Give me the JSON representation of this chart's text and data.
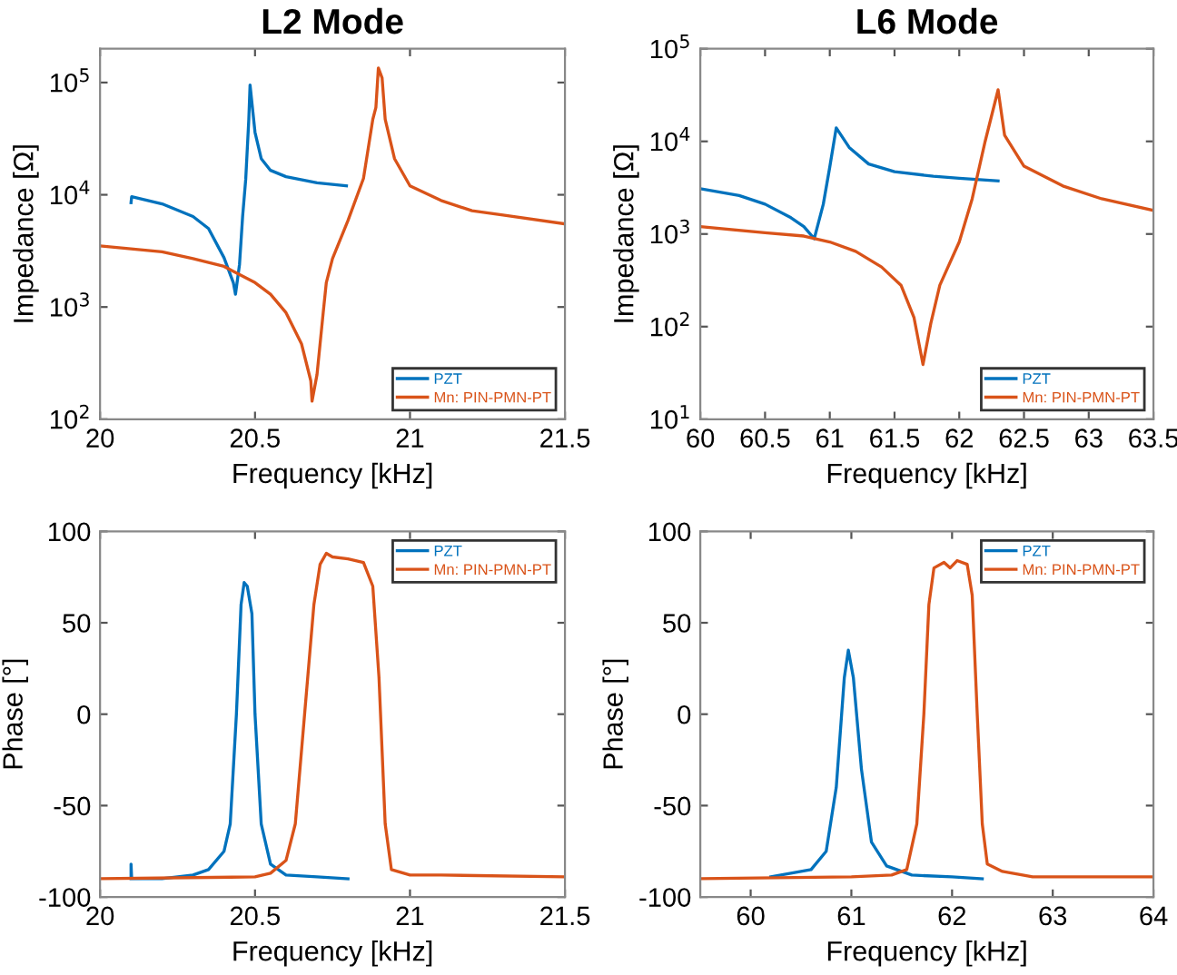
{
  "chart_data": [
    {
      "type": "line",
      "title": "L2 Mode",
      "xlabel": "Frequency [kHz]",
      "ylabel": "Impedance [Ω]",
      "log": "y",
      "xlim": [
        20,
        21.5
      ],
      "xticks": [
        20,
        20.5,
        21,
        21.5
      ],
      "ylim": [
        100,
        200000
      ],
      "yticks": [
        {
          "value": 100,
          "label": "10$^{2}$"
        },
        {
          "value": 1000,
          "label": "10$^{3}$"
        },
        {
          "value": 10000,
          "label": "10$^{4}$"
        },
        {
          "value": 100000,
          "label": "10$^{5}$"
        }
      ],
      "grid": false,
      "legend": "bottom right",
      "series": [
        {
          "name": "PZT",
          "color": "#0072bd",
          "x": [
            20.1,
            20.102,
            20.2,
            20.3,
            20.35,
            20.4,
            20.43,
            20.437,
            20.45,
            20.46,
            20.47,
            20.48,
            20.484,
            20.5,
            20.52,
            20.55,
            20.6,
            20.7,
            20.795
          ],
          "values": [
            8500,
            9600,
            8300,
            6400,
            5000,
            2750,
            1650,
            1300,
            2400,
            6400,
            13700,
            47000,
            95000,
            36000,
            21000,
            16500,
            14500,
            12800,
            12000
          ]
        },
        {
          "name": "Mn: PIN-PMN-PT",
          "color": "#d95319",
          "x": [
            20,
            20.2,
            20.3,
            20.4,
            20.5,
            20.55,
            20.6,
            20.65,
            20.68,
            20.684,
            20.7,
            20.72,
            20.73,
            20.75,
            20.8,
            20.85,
            20.88,
            20.89,
            20.898,
            20.91,
            20.92,
            20.95,
            21.0,
            21.1,
            21.2,
            21.3,
            21.5
          ],
          "values": [
            3500,
            3100,
            2700,
            2300,
            1650,
            1300,
            890,
            470,
            220,
            145,
            250,
            890,
            1650,
            2700,
            5900,
            14000,
            47000,
            60000,
            135000,
            110000,
            47000,
            21000,
            12000,
            8900,
            7200,
            6600,
            5500
          ]
        }
      ]
    },
    {
      "type": "line",
      "title": "L6 Mode",
      "xlabel": "Frequency [kHz]",
      "ylabel": "Impedance [Ω]",
      "log": "y",
      "xlim": [
        60,
        63.5
      ],
      "xticks": [
        60,
        60.5,
        61,
        61.5,
        62,
        62.5,
        63,
        63.5
      ],
      "ylim": [
        10,
        100000
      ],
      "yticks": [
        {
          "value": 10,
          "label": "10$^{1}$"
        },
        {
          "value": 100,
          "label": "10$^{2}$"
        },
        {
          "value": 1000,
          "label": "10$^{3}$"
        },
        {
          "value": 10000,
          "label": "10$^{4}$"
        },
        {
          "value": 100000,
          "label": "10$^{5}$"
        }
      ],
      "grid": false,
      "legend": "bottom right",
      "series": [
        {
          "name": "PZT",
          "color": "#0072bd",
          "x": [
            60,
            60.3,
            60.5,
            60.7,
            60.8,
            60.88,
            60.95,
            61.0,
            61.05,
            61.15,
            61.3,
            61.5,
            61.8,
            62.0,
            62.3
          ],
          "values": [
            3080,
            2600,
            2100,
            1500,
            1200,
            890,
            2100,
            5300,
            14000,
            8600,
            5700,
            4700,
            4200,
            4000,
            3750
          ]
        },
        {
          "name": "Mn: PIN-PMN-PT",
          "color": "#d95319",
          "x": [
            60,
            60.5,
            60.8,
            61.0,
            61.2,
            61.4,
            61.55,
            61.65,
            61.72,
            61.78,
            61.85,
            62.0,
            62.1,
            62.2,
            62.3,
            62.35,
            62.5,
            62.8,
            63.1,
            63.5
          ],
          "values": [
            1200,
            1030,
            950,
            820,
            650,
            440,
            280,
            126,
            39,
            108,
            280,
            820,
            2400,
            10000,
            36000,
            11700,
            5400,
            3300,
            2400,
            1800
          ]
        }
      ]
    },
    {
      "type": "line",
      "xlabel": "Frequency [kHz]",
      "ylabel": "Phase [°]",
      "xlim": [
        20,
        21.5
      ],
      "xticks": [
        20,
        20.5,
        21,
        21.5
      ],
      "ylim": [
        -100,
        100
      ],
      "yticks": [
        -100,
        -50,
        0,
        50,
        100
      ],
      "grid": false,
      "legend": "top right",
      "series": [
        {
          "name": "PZT",
          "color": "#0072bd",
          "x": [
            20.1,
            20.1,
            20.102,
            20.2,
            20.3,
            20.35,
            20.4,
            20.42,
            20.44,
            20.455,
            20.465,
            20.475,
            20.49,
            20.5,
            20.52,
            20.55,
            20.6,
            20.7,
            20.8
          ],
          "values": [
            -90,
            -82,
            -90,
            -90,
            -88,
            -85,
            -75,
            -60,
            0,
            60,
            72,
            70,
            55,
            0,
            -60,
            -82,
            -88,
            -89,
            -90
          ]
        },
        {
          "name": "Mn: PIN-PMN-PT",
          "color": "#d95319",
          "x": [
            20.0,
            20.5,
            20.55,
            20.6,
            20.63,
            20.66,
            20.69,
            20.71,
            20.73,
            20.75,
            20.8,
            20.85,
            20.88,
            20.9,
            20.92,
            20.94,
            21.0,
            21.1,
            21.5
          ],
          "values": [
            -90,
            -89,
            -87,
            -80,
            -60,
            0,
            60,
            82,
            88,
            86,
            85,
            83,
            70,
            20,
            -60,
            -85,
            -88,
            -88,
            -89
          ]
        }
      ]
    },
    {
      "type": "line",
      "xlabel": "Frequency [kHz]",
      "ylabel": "Phase [°]",
      "xlim": [
        59.5,
        64
      ],
      "xticks": [
        60,
        61,
        62,
        63,
        64
      ],
      "ylim": [
        -100,
        100
      ],
      "yticks": [
        -100,
        -50,
        0,
        50,
        100
      ],
      "grid": false,
      "legend": "top right",
      "series": [
        {
          "name": "PZT",
          "color": "#0072bd",
          "x": [
            60.2,
            60.6,
            60.75,
            60.85,
            60.93,
            60.97,
            61.02,
            61.1,
            61.2,
            61.35,
            61.6,
            62.0,
            62.3
          ],
          "values": [
            -89,
            -85,
            -75,
            -40,
            20,
            35,
            20,
            -30,
            -70,
            -83,
            -88,
            -89,
            -90
          ]
        },
        {
          "name": "Mn: PIN-PMN-PT",
          "color": "#d95319",
          "x": [
            59.5,
            61.0,
            61.4,
            61.55,
            61.65,
            61.72,
            61.77,
            61.82,
            61.92,
            61.98,
            62.05,
            62.15,
            62.2,
            62.25,
            62.3,
            62.35,
            62.5,
            62.8,
            64
          ],
          "values": [
            -90,
            -89,
            -88,
            -85,
            -60,
            0,
            60,
            80,
            83,
            80,
            84,
            82,
            65,
            0,
            -60,
            -82,
            -86,
            -89,
            -89
          ]
        }
      ]
    }
  ]
}
